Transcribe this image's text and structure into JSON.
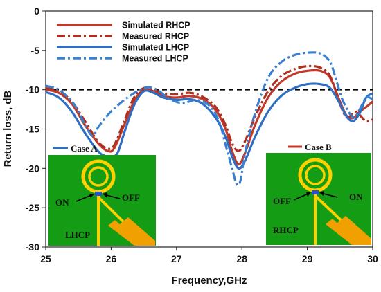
{
  "chart_data": {
    "type": "line",
    "title": "",
    "xlabel": "Frequency,GHz",
    "ylabel": "Return loss, dB",
    "xlim": [
      25,
      30
    ],
    "ylim": [
      -30,
      0
    ],
    "xticks": [
      "25",
      "26",
      "27",
      "28",
      "29",
      "30"
    ],
    "yticks": [
      "0",
      "-5",
      "-10",
      "-15",
      "-20",
      "-25",
      "-30"
    ],
    "grid": false,
    "legend_position": "top-center",
    "reference_line": -10,
    "series": [
      {
        "name": "Simulated RHCP",
        "color": "#c0392b",
        "style": "solid",
        "x": [
          25.0,
          25.2,
          25.4,
          25.6,
          25.8,
          25.95,
          26.05,
          26.2,
          26.35,
          26.5,
          26.65,
          26.8,
          27.0,
          27.2,
          27.4,
          27.6,
          27.75,
          27.85,
          27.95,
          28.05,
          28.2,
          28.4,
          28.6,
          28.8,
          29.0,
          29.2,
          29.35,
          29.5,
          29.6,
          29.7,
          29.8,
          29.9,
          30.0
        ],
        "y": [
          -10.0,
          -10.4,
          -11.8,
          -14.5,
          -16.8,
          -17.8,
          -17.4,
          -14.5,
          -11.5,
          -10.0,
          -10.2,
          -10.8,
          -11.0,
          -10.8,
          -11.2,
          -12.6,
          -15.0,
          -17.8,
          -19.5,
          -18.0,
          -14.5,
          -11.0,
          -9.0,
          -8.0,
          -7.6,
          -7.6,
          -8.5,
          -11.5,
          -13.3,
          -13.6,
          -12.8,
          -12.2,
          -11.5
        ]
      },
      {
        "name": "Measured RHCP",
        "color": "#b03020",
        "style": "dashdot",
        "x": [
          25.0,
          25.2,
          25.4,
          25.6,
          25.8,
          25.95,
          26.05,
          26.2,
          26.35,
          26.5,
          26.65,
          26.8,
          27.0,
          27.2,
          27.4,
          27.6,
          27.75,
          27.85,
          27.95,
          28.05,
          28.2,
          28.4,
          28.6,
          28.8,
          29.0,
          29.2,
          29.35,
          29.5,
          29.6,
          29.7,
          29.75,
          29.8,
          29.9,
          30.0
        ],
        "y": [
          -9.8,
          -10.2,
          -11.5,
          -14.0,
          -16.6,
          -17.5,
          -17.0,
          -14.0,
          -11.0,
          -9.8,
          -10.0,
          -10.5,
          -10.6,
          -10.4,
          -10.9,
          -12.2,
          -14.5,
          -16.8,
          -17.8,
          -16.5,
          -13.5,
          -10.2,
          -8.3,
          -7.4,
          -7.0,
          -7.2,
          -8.3,
          -11.8,
          -13.5,
          -13.0,
          -12.8,
          -13.2,
          -14.0,
          -13.8
        ]
      },
      {
        "name": "Simulated LHCP",
        "color": "#2e6fc4",
        "style": "solid",
        "x": [
          25.0,
          25.2,
          25.4,
          25.6,
          25.8,
          25.9,
          26.0,
          26.1,
          26.2,
          26.35,
          26.5,
          26.65,
          26.8,
          27.0,
          27.2,
          27.4,
          27.6,
          27.75,
          27.85,
          27.95,
          28.05,
          28.2,
          28.4,
          28.6,
          28.8,
          29.0,
          29.2,
          29.35,
          29.5,
          29.6,
          29.7,
          29.8,
          29.9,
          30.0
        ],
        "y": [
          -10.3,
          -11.0,
          -12.8,
          -15.5,
          -17.8,
          -18.4,
          -18.6,
          -18.0,
          -15.5,
          -12.0,
          -10.2,
          -10.4,
          -11.0,
          -11.3,
          -11.2,
          -11.8,
          -13.6,
          -16.0,
          -18.5,
          -20.0,
          -19.0,
          -16.0,
          -12.8,
          -10.8,
          -9.8,
          -9.3,
          -9.3,
          -9.8,
          -11.8,
          -13.4,
          -14.0,
          -13.0,
          -11.0,
          -10.5
        ]
      },
      {
        "name": "Measured LHCP",
        "color": "#3a80d0",
        "style": "dashdot",
        "x": [
          25.0,
          25.2,
          25.4,
          25.5,
          25.6,
          25.7,
          25.75,
          25.8,
          25.95,
          26.1,
          26.25,
          26.4,
          26.55,
          26.7,
          26.9,
          27.1,
          27.3,
          27.5,
          27.65,
          27.75,
          27.85,
          27.92,
          27.98,
          28.05,
          28.2,
          28.4,
          28.6,
          28.8,
          29.0,
          29.2,
          29.35,
          29.45,
          29.55,
          29.7,
          29.8,
          29.9,
          30.0
        ],
        "y": [
          -9.5,
          -10.0,
          -11.5,
          -12.8,
          -14.5,
          -15.8,
          -15.6,
          -14.8,
          -13.2,
          -12.0,
          -11.0,
          -10.2,
          -9.7,
          -10.0,
          -11.2,
          -11.7,
          -11.3,
          -12.0,
          -14.0,
          -17.0,
          -20.0,
          -22.0,
          -21.5,
          -18.0,
          -13.0,
          -8.5,
          -6.5,
          -5.6,
          -5.3,
          -5.4,
          -6.5,
          -9.0,
          -11.5,
          -13.5,
          -12.5,
          -11.0,
          -11.2
        ]
      }
    ]
  },
  "insets": [
    {
      "title": "Case A",
      "title_color": "#2e6fc4",
      "label_left": "ON",
      "label_right": "OFF",
      "label_bottom": "LHCP"
    },
    {
      "title": "Case B",
      "title_color": "#c0392b",
      "label_left": "OFF",
      "label_right": "ON",
      "label_bottom": "RHCP"
    }
  ],
  "colors": {
    "substrate": "#149c14",
    "patch_yellow": "#ffd000",
    "feed_orange": "#f0a000",
    "reference_line": "#000000"
  }
}
